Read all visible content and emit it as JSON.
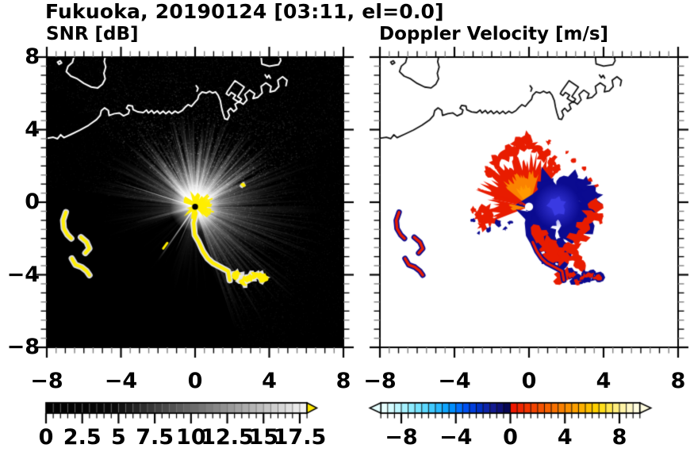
{
  "header": {
    "title": "Fukuoka, 20190124 [03:11, el=0.0]"
  },
  "panels": {
    "snr": {
      "title": "SNR [dB]"
    },
    "doppler": {
      "title": "Doppler Velocity [m/s]"
    }
  },
  "chart_data": [
    {
      "panel": "left",
      "type": "heatmap",
      "title": "SNR [dB]",
      "xlim": [
        -8,
        8
      ],
      "ylim": [
        -8,
        8
      ],
      "xticks": [
        -8,
        -4,
        0,
        4,
        8
      ],
      "xtick_labels": [
        "−8",
        "−4",
        "0",
        "4",
        "8"
      ],
      "yticks": [
        8,
        4,
        0,
        -4,
        -8
      ],
      "ytick_labels": [
        "8",
        "4",
        "0",
        "−4",
        "−8"
      ],
      "minor_tick_step": 0.5,
      "background": "#000000",
      "coast_color": "#ffffff",
      "radar_center": [
        0,
        -0.25
      ],
      "colorbar": {
        "min": 0,
        "max": 18,
        "tick_values": [
          0,
          2.5,
          5,
          7.5,
          10,
          12.5,
          15,
          17.5
        ],
        "tick_labels": [
          "0",
          "2.5",
          "5",
          "7.5",
          "10",
          "12.5",
          "15",
          "17.5"
        ],
        "segment_step": 0.5,
        "segments": [
          "#000000",
          "#010101",
          "#020202",
          "#030303",
          "#040404",
          "#050505",
          "#060606",
          "#070707",
          "#080808",
          "#090909",
          "#131313",
          "#1c1c1c",
          "#252525",
          "#2e2e2e",
          "#373737",
          "#404040",
          "#494949",
          "#525252",
          "#5b5b5b",
          "#636363",
          "#6c6c6c",
          "#757575",
          "#7e7e7e",
          "#878787",
          "#909090",
          "#999999",
          "#a2a2a2",
          "#ababab",
          "#b4b4b4",
          "#bcbcbc",
          "#c5c5c5",
          "#cecece",
          "#d7d7d7",
          "#e0e0e0",
          "#e9e9e9",
          "#f2f2f2"
        ],
        "over_arrow": "#ffe800"
      }
    },
    {
      "panel": "right",
      "type": "heatmap",
      "title": "Doppler Velocity [m/s]",
      "xlim": [
        -8,
        8
      ],
      "ylim": [
        -8,
        8
      ],
      "xticks": [
        -8,
        -4,
        0,
        4,
        8
      ],
      "xtick_labels": [
        "−8",
        "−4",
        "0",
        "4",
        "8"
      ],
      "minor_tick_step": 0.5,
      "background": "#ffffff",
      "coast_color": "#111111",
      "radar_center": [
        0,
        -0.25
      ],
      "colorbar": {
        "min": -9.5,
        "max": 9.5,
        "tick_values": [
          -8,
          -4,
          0,
          4,
          8
        ],
        "tick_labels": [
          "−8",
          "−4",
          "0",
          "4",
          "8"
        ],
        "segment_step": 0.5,
        "segments": [
          "#e8ffff",
          "#d4fbff",
          "#bdf6ff",
          "#a6f1ff",
          "#8eebff",
          "#75e3ff",
          "#5cd8ff",
          "#42caff",
          "#29b9ff",
          "#10a5ff",
          "#008eff",
          "#0070ff",
          "#0051f2",
          "#003fdd",
          "#0031c4",
          "#0d25aa",
          "#131b91",
          "#0e1078",
          "#070754",
          "#ef1800",
          "#f02600",
          "#f23500",
          "#f34400",
          "#f55300",
          "#f66200",
          "#f87100",
          "#f98000",
          "#fa9000",
          "#fca000",
          "#fdb000",
          "#fec000",
          "#ffd000",
          "#ffdd1a",
          "#ffe64d",
          "#ffed7d",
          "#fff3a6",
          "#fff8c6",
          "#fffce0"
        ],
        "under_arrow": "#e6ffff",
        "over_arrow": "#fffce0"
      }
    }
  ],
  "map": {
    "coastlines": [
      [
        [
          -6.5,
          8.15
        ],
        [
          -6.62,
          7.7
        ],
        [
          -6.85,
          7.5
        ],
        [
          -6.95,
          7.2
        ],
        [
          -6.7,
          6.95
        ],
        [
          -6.35,
          6.8
        ],
        [
          -6.0,
          6.55
        ],
        [
          -5.6,
          6.35
        ],
        [
          -5.25,
          6.3
        ],
        [
          -5.0,
          6.5
        ],
        [
          -4.85,
          6.8
        ],
        [
          -4.92,
          7.1
        ],
        [
          -4.82,
          7.45
        ],
        [
          -4.9,
          7.75
        ],
        [
          -4.82,
          8.15
        ]
      ],
      [
        [
          -7.42,
          7.72
        ],
        [
          -7.28,
          7.8
        ],
        [
          -7.2,
          7.68
        ],
        [
          -7.34,
          7.6
        ],
        [
          -7.42,
          7.72
        ]
      ],
      [
        [
          -8.15,
          3.5
        ],
        [
          -7.65,
          3.58
        ],
        [
          -7.42,
          3.5
        ],
        [
          -7.25,
          3.72
        ],
        [
          -7.08,
          3.56
        ],
        [
          -6.65,
          3.76
        ],
        [
          -6.2,
          3.98
        ],
        [
          -5.75,
          4.24
        ],
        [
          -5.32,
          4.55
        ],
        [
          -5.12,
          4.78
        ],
        [
          -5.06,
          5.05
        ],
        [
          -4.88,
          5.2
        ],
        [
          -4.68,
          5.06
        ],
        [
          -4.64,
          4.78
        ],
        [
          -4.36,
          4.88
        ],
        [
          -4.08,
          4.92
        ],
        [
          -3.86,
          4.76
        ],
        [
          -3.6,
          4.88
        ],
        [
          -3.54,
          5.08
        ],
        [
          -3.7,
          5.18
        ],
        [
          -3.62,
          5.34
        ],
        [
          -3.38,
          5.3
        ],
        [
          -3.34,
          5.1
        ],
        [
          -3.08,
          4.98
        ],
        [
          -2.8,
          4.94
        ],
        [
          -2.62,
          5.08
        ],
        [
          -2.52,
          4.92
        ],
        [
          -2.34,
          5.06
        ],
        [
          -2.22,
          4.9
        ],
        [
          -2.04,
          5.04
        ],
        [
          -1.9,
          4.88
        ],
        [
          -1.72,
          5.02
        ],
        [
          -1.58,
          4.88
        ],
        [
          -1.4,
          5.02
        ],
        [
          -1.26,
          4.88
        ],
        [
          -1.08,
          5.02
        ],
        [
          -0.92,
          4.92
        ],
        [
          -0.7,
          5.05
        ],
        [
          -0.55,
          5.22
        ],
        [
          -0.38,
          5.38
        ],
        [
          -0.2,
          5.28
        ],
        [
          -0.02,
          5.5
        ],
        [
          0.14,
          5.68
        ],
        [
          0.2,
          5.9
        ],
        [
          0.38,
          6.08
        ],
        [
          0.6,
          6.02
        ],
        [
          0.78,
          6.12
        ],
        [
          0.95,
          6.02
        ],
        [
          1.1,
          6.08
        ],
        [
          1.24,
          5.9
        ],
        [
          1.36,
          5.6
        ],
        [
          1.42,
          5.25
        ],
        [
          1.5,
          4.92
        ],
        [
          1.6,
          4.6
        ],
        [
          1.75,
          4.56
        ],
        [
          1.85,
          4.78
        ],
        [
          1.76,
          5.02
        ],
        [
          1.92,
          5.18
        ],
        [
          2.08,
          5.0
        ],
        [
          2.25,
          5.15
        ],
        [
          2.15,
          5.4
        ],
        [
          2.38,
          5.56
        ],
        [
          2.6,
          5.4
        ],
        [
          2.8,
          5.64
        ],
        [
          2.68,
          5.94
        ],
        [
          2.94,
          6.18
        ],
        [
          3.22,
          5.98
        ],
        [
          3.12,
          5.72
        ],
        [
          3.38,
          5.78
        ],
        [
          3.62,
          6.02
        ],
        [
          3.56,
          6.38
        ],
        [
          3.82,
          6.58
        ],
        [
          4.1,
          6.38
        ],
        [
          4.04,
          6.08
        ],
        [
          4.3,
          6.14
        ],
        [
          4.52,
          6.38
        ],
        [
          4.46,
          6.72
        ],
        [
          4.72,
          6.92
        ],
        [
          4.96,
          6.72
        ],
        [
          4.9,
          6.42
        ]
      ],
      [
        [
          1.75,
          6.12
        ],
        [
          2.15,
          6.7
        ],
        [
          2.65,
          6.35
        ],
        [
          2.3,
          5.82
        ],
        [
          2.5,
          5.68
        ],
        [
          2.38,
          5.5
        ],
        [
          2.05,
          5.72
        ],
        [
          2.18,
          5.9
        ],
        [
          1.95,
          6.05
        ],
        [
          1.82,
          5.88
        ],
        [
          1.68,
          5.98
        ],
        [
          1.75,
          6.12
        ]
      ],
      [
        [
          3.55,
          8.15
        ],
        [
          3.6,
          7.62
        ],
        [
          4.0,
          7.5
        ],
        [
          4.5,
          7.58
        ],
        [
          4.62,
          7.8
        ],
        [
          4.55,
          8.15
        ]
      ],
      [
        [
          3.78,
          7.02
        ],
        [
          3.88,
          6.86
        ],
        [
          3.98,
          7.0
        ],
        [
          4.06,
          6.84
        ]
      ],
      [
        [
          0.06,
          6.42
        ],
        [
          0.16,
          6.28
        ],
        [
          0.1,
          6.12
        ]
      ]
    ]
  },
  "features": {
    "west_arcs": [
      [
        [
          -6.97,
          -0.55
        ],
        [
          -7.12,
          -1.0
        ],
        [
          -7.08,
          -1.45
        ],
        [
          -6.88,
          -1.8
        ],
        [
          -6.68,
          -2.0
        ]
      ],
      [
        [
          -6.16,
          -1.93
        ],
        [
          -5.85,
          -2.2
        ],
        [
          -5.7,
          -2.55
        ],
        [
          -5.92,
          -2.8
        ]
      ],
      [
        [
          -6.65,
          -3.1
        ],
        [
          -6.45,
          -3.45
        ],
        [
          -6.12,
          -3.58
        ],
        [
          -5.85,
          -3.8
        ],
        [
          -5.7,
          -4.02
        ]
      ]
    ],
    "se_chain": [
      [
        0.05,
        -0.6
      ],
      [
        -0.08,
        -1.15
      ],
      [
        -0.02,
        -1.8
      ],
      [
        0.2,
        -2.2
      ],
      [
        0.42,
        -2.7
      ],
      [
        0.68,
        -3.1
      ],
      [
        0.95,
        -3.35
      ],
      [
        1.32,
        -3.55
      ],
      [
        1.78,
        -3.8
      ],
      [
        1.87,
        -4.3
      ]
    ],
    "chain_blobs": [
      [
        2.3,
        -4.02
      ],
      [
        2.6,
        -4.35
      ],
      [
        2.95,
        -4.15
      ],
      [
        3.28,
        -4.02
      ],
      [
        3.65,
        -4.15
      ]
    ],
    "ne_dot": [
      2.6,
      0.95
    ],
    "snr": {
      "saturated_color": "#ffee00",
      "ray_color": "#ffffff",
      "bright_sector_deg": [
        25,
        140
      ]
    },
    "doppler": {
      "negative_color": "#0b0b90",
      "negative_bright": "#3a3ae2",
      "positive_color": "#e81c00",
      "orange": "#fb8200",
      "deep_orange": "#ff9a00",
      "fan_sector_deg": [
        52,
        168
      ],
      "blue_blob_center": [
        1.5,
        -0.2
      ]
    }
  }
}
